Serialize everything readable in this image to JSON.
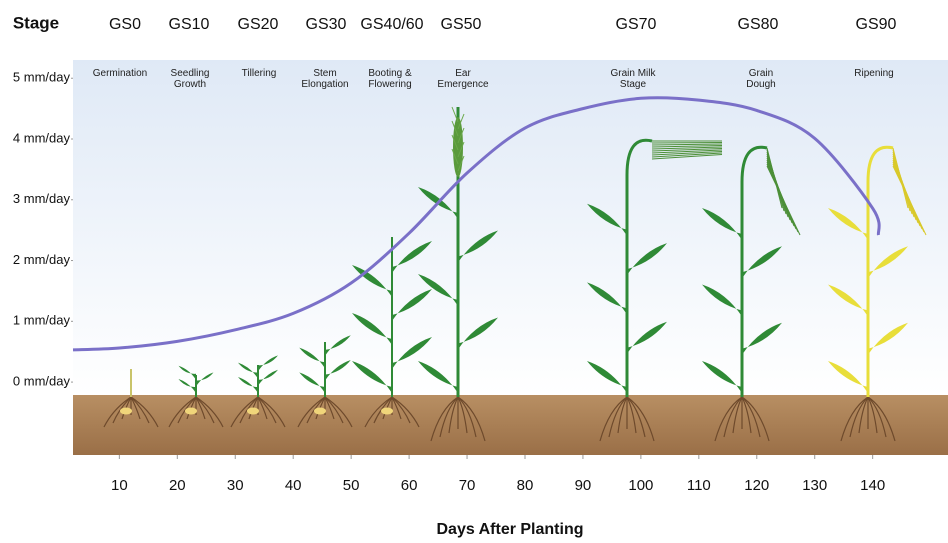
{
  "chart_data": {
    "type": "line",
    "stage_heading": "Stage",
    "stages": [
      {
        "code": "GS0",
        "label": "Germination"
      },
      {
        "code": "GS10",
        "label": "Seedling Growth"
      },
      {
        "code": "GS20",
        "label": "Tillering"
      },
      {
        "code": "GS30",
        "label": "Stem Elongation"
      },
      {
        "code": "GS40/60",
        "label": "Booting & Flowering"
      },
      {
        "code": "GS50",
        "label": "Ear Emergence"
      },
      {
        "code": "GS70",
        "label": "Grain Milk Stage"
      },
      {
        "code": "GS80",
        "label": "Grain Dough"
      },
      {
        "code": "GS90",
        "label": "Ripening"
      }
    ],
    "x_label": "Days After Planting",
    "x": [
      2,
      10,
      20,
      30,
      40,
      50,
      60,
      70,
      80,
      90,
      100,
      110,
      120,
      130,
      140,
      141
    ],
    "series": [
      {
        "color": "#7a70c8",
        "values": [
          0.53,
          0.56,
          0.67,
          0.86,
          1.13,
          1.63,
          2.45,
          3.44,
          4.18,
          4.5,
          4.67,
          4.64,
          4.47,
          4.01,
          2.86,
          2.42
        ]
      }
    ],
    "xlim": [
      2,
      153
    ],
    "xticks": [
      10,
      20,
      30,
      40,
      50,
      60,
      70,
      80,
      90,
      100,
      110,
      120,
      130,
      140
    ],
    "ylim": [
      -1.2,
      5.3
    ],
    "yticks": [
      {
        "value": 0,
        "label": "0 mm/day"
      },
      {
        "value": 1,
        "label": "1 mm/day"
      },
      {
        "value": 2,
        "label": "2 mm/day"
      },
      {
        "value": 3,
        "label": "3 mm/day"
      },
      {
        "value": 4,
        "label": "4 mm/day"
      },
      {
        "value": 5,
        "label": "5 mm/day"
      }
    ]
  }
}
